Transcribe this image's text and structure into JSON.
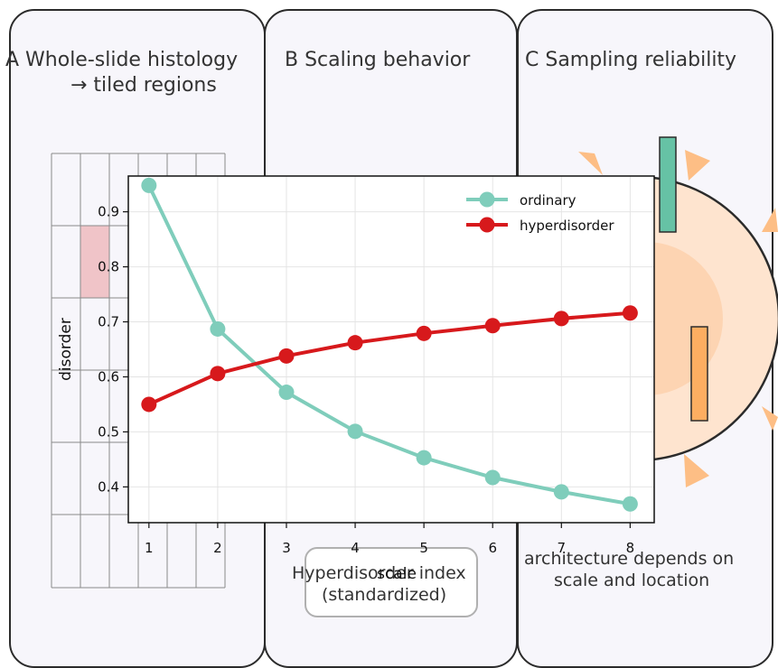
{
  "panels": {
    "a": {
      "title_line1": "A  Whole-slide histology",
      "title_line2": "→ tiled regions"
    },
    "b": {
      "title": "B  Scaling behavior",
      "box_line1": "Hyperdisorder index",
      "box_line2": "(standardized)"
    },
    "c": {
      "title": "C  Sampling reliability",
      "caption_line1": "architecture depends on",
      "caption_line2": "scale and location"
    }
  },
  "colors": {
    "ordinary": "#7fcdbb",
    "hyperdisorder": "#d7191c",
    "tile_highlight": "#f0c4c8",
    "wedge": "#fdbe85",
    "bar_teal": "#66c2a5",
    "bar_orange": "#fdae61"
  },
  "chart_data": {
    "type": "line",
    "xlabel": "scale",
    "ylabel": "disorder",
    "x": [
      1,
      2,
      3,
      4,
      5,
      6,
      7,
      8
    ],
    "xlim": [
      0.7,
      8.35
    ],
    "ylim": [
      0.335,
      0.965
    ],
    "xticks": [
      1,
      2,
      3,
      4,
      5,
      6,
      7,
      8
    ],
    "yticks": [
      0.4,
      0.5,
      0.6,
      0.7,
      0.8,
      0.9
    ],
    "grid": true,
    "legend": "top-right",
    "series": [
      {
        "name": "ordinary",
        "values": [
          0.948,
          0.687,
          0.572,
          0.501,
          0.453,
          0.417,
          0.391,
          0.369
        ]
      },
      {
        "name": "hyperdisorder",
        "values": [
          0.55,
          0.606,
          0.638,
          0.662,
          0.679,
          0.693,
          0.706,
          0.716
        ]
      }
    ]
  }
}
